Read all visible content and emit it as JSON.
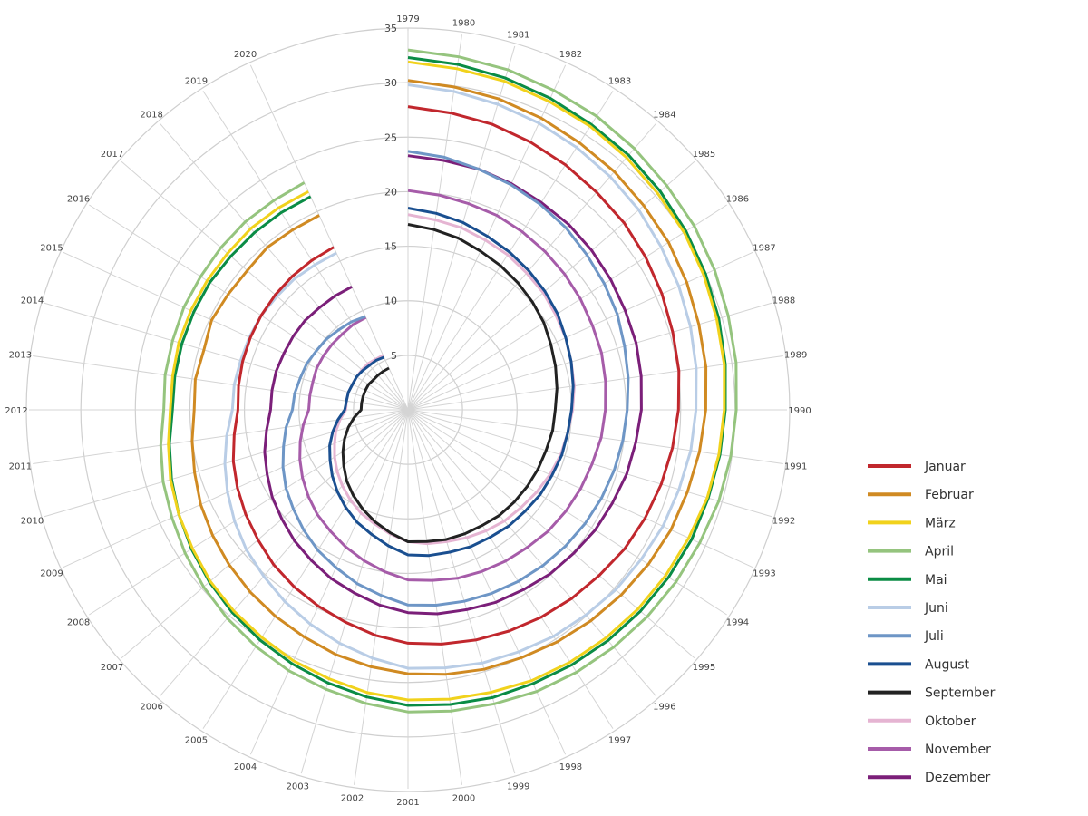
{
  "chart_data": {
    "type": "radar",
    "title": "",
    "angular_axis": "year",
    "radial_axis": {
      "ticks": [
        5,
        10,
        15,
        20,
        25,
        30,
        35
      ],
      "range": [
        0,
        35
      ]
    },
    "slots_per_revolution": 44,
    "years": [
      1979,
      1980,
      1981,
      1982,
      1983,
      1984,
      1985,
      1986,
      1987,
      1988,
      1989,
      1990,
      1991,
      1992,
      1993,
      1994,
      1995,
      1996,
      1997,
      1998,
      1999,
      2000,
      2001,
      2002,
      2003,
      2004,
      2005,
      2006,
      2007,
      2008,
      2009,
      2010,
      2011,
      2012,
      2013,
      2014,
      2015,
      2016,
      2017,
      2018,
      2019,
      2020
    ],
    "legend_position": "right",
    "grid": true,
    "series": [
      {
        "name": "Januar",
        "color": "#c1272d",
        "values": [
          27.8,
          27.5,
          27.3,
          27.0,
          26.7,
          26.4,
          26.2,
          25.9,
          25.6,
          25.3,
          25.1,
          24.8,
          24.5,
          24.2,
          23.9,
          23.6,
          23.2,
          22.9,
          22.6,
          22.3,
          22.0,
          21.7,
          21.4,
          20.9,
          20.3,
          19.8,
          19.3,
          18.8,
          18.2,
          17.7,
          17.2,
          16.7,
          16.1,
          15.6,
          15.7,
          15.8,
          15.9,
          16.0,
          16.1,
          16.2,
          16.3,
          16.4
        ]
      },
      {
        "name": "Februar",
        "color": "#d08a22",
        "values": [
          30.2,
          29.9,
          29.7,
          29.4,
          29.1,
          28.9,
          28.6,
          28.4,
          28.1,
          27.8,
          27.6,
          27.3,
          27.0,
          26.7,
          26.5,
          26.2,
          25.9,
          25.6,
          25.3,
          25.0,
          24.8,
          24.5,
          24.2,
          23.8,
          23.4,
          22.9,
          22.5,
          22.1,
          21.7,
          21.3,
          20.9,
          20.4,
          20.0,
          19.6,
          19.7,
          19.5,
          19.8,
          19.6,
          19.5,
          19.7,
          19.6,
          19.6
        ]
      },
      {
        "name": "März",
        "color": "#f1d21c",
        "values": [
          31.9,
          31.6,
          31.4,
          31.1,
          30.9,
          30.6,
          30.3,
          30.1,
          29.8,
          29.5,
          29.3,
          29.0,
          28.8,
          28.6,
          28.3,
          28.1,
          27.9,
          27.7,
          27.5,
          27.3,
          27.0,
          26.8,
          26.6,
          26.2,
          25.7,
          25.3,
          24.8,
          24.4,
          24.0,
          23.5,
          23.1,
          22.7,
          22.2,
          21.8,
          21.8,
          21.9,
          21.9,
          21.9,
          21.9,
          22.0,
          22.0,
          22.0
        ]
      },
      {
        "name": "April",
        "color": "#95c47e",
        "values": [
          33.0,
          32.7,
          32.5,
          32.2,
          32.0,
          31.7,
          31.4,
          31.2,
          30.9,
          30.6,
          30.4,
          30.1,
          29.9,
          29.7,
          29.4,
          29.2,
          29.0,
          28.8,
          28.6,
          28.4,
          28.1,
          27.9,
          27.7,
          27.2,
          26.7,
          26.3,
          25.8,
          25.3,
          24.8,
          24.3,
          23.8,
          23.4,
          22.9,
          22.4,
          22.5,
          22.5,
          22.6,
          22.6,
          22.7,
          22.8,
          22.8,
          22.9
        ]
      },
      {
        "name": "Mai",
        "color": "#0a8c45",
        "values": [
          32.3,
          32.0,
          31.7,
          31.4,
          31.1,
          30.9,
          30.6,
          30.3,
          30.0,
          29.7,
          29.4,
          29.1,
          28.9,
          28.7,
          28.6,
          28.4,
          28.2,
          28.0,
          27.8,
          27.6,
          27.5,
          27.3,
          27.1,
          26.6,
          26.1,
          25.6,
          25.1,
          24.6,
          24.1,
          23.6,
          23.1,
          22.6,
          22.1,
          21.6,
          21.6,
          21.6,
          21.6,
          21.6,
          21.5,
          21.5,
          21.5,
          21.5
        ]
      },
      {
        "name": "Juni",
        "color": "#b9cde6",
        "values": [
          29.8,
          29.5,
          29.2,
          28.9,
          28.6,
          28.3,
          28.0,
          27.6,
          27.3,
          27.0,
          26.7,
          26.4,
          26.2,
          25.9,
          25.7,
          25.4,
          25.2,
          24.9,
          24.7,
          24.4,
          24.2,
          23.9,
          23.7,
          23.0,
          22.3,
          21.6,
          20.9,
          20.2,
          19.6,
          18.9,
          18.2,
          17.5,
          16.8,
          16.1,
          16.1,
          16.0,
          16.0,
          16.0,
          15.9,
          15.9,
          15.8,
          15.8
        ]
      },
      {
        "name": "Juli",
        "color": "#6e96c6",
        "values": [
          23.7,
          23.4,
          23.0,
          22.7,
          22.4,
          22.1,
          21.7,
          21.4,
          21.1,
          20.7,
          20.4,
          20.1,
          19.9,
          19.7,
          19.5,
          19.3,
          19.1,
          18.9,
          18.7,
          18.5,
          18.3,
          18.1,
          17.9,
          17.2,
          16.6,
          15.9,
          15.3,
          14.6,
          13.9,
          13.3,
          12.6,
          11.9,
          11.3,
          10.6,
          10.5,
          10.3,
          10.2,
          10.0,
          9.9,
          9.7,
          9.6,
          9.4
        ]
      },
      {
        "name": "August",
        "color": "#1a4f90",
        "values": [
          18.5,
          18.2,
          17.9,
          17.5,
          17.2,
          16.9,
          16.6,
          16.3,
          15.9,
          15.6,
          15.3,
          15.0,
          14.8,
          14.7,
          14.5,
          14.4,
          14.2,
          14.1,
          13.9,
          13.8,
          13.6,
          13.5,
          13.3,
          12.6,
          11.9,
          11.3,
          10.6,
          9.9,
          9.2,
          8.5,
          7.9,
          7.2,
          6.5,
          5.8,
          5.7,
          5.7,
          5.6,
          5.6,
          5.5,
          5.4,
          5.4,
          5.3
        ]
      },
      {
        "name": "September",
        "color": "#222222",
        "values": [
          17.0,
          16.7,
          16.4,
          16.0,
          15.7,
          15.4,
          15.1,
          14.8,
          14.4,
          14.1,
          13.8,
          13.5,
          13.4,
          13.2,
          13.1,
          13.0,
          12.9,
          12.8,
          12.6,
          12.5,
          12.4,
          12.2,
          12.1,
          11.4,
          10.7,
          10.0,
          9.3,
          8.6,
          7.8,
          7.1,
          6.4,
          5.7,
          5.0,
          4.3,
          4.3,
          4.3,
          4.3,
          4.3,
          4.2,
          4.2,
          4.2,
          4.2
        ]
      },
      {
        "name": "Oktober",
        "color": "#e5b4d2",
        "values": [
          17.9,
          17.6,
          17.4,
          17.1,
          16.9,
          16.6,
          16.4,
          16.1,
          15.9,
          15.6,
          15.4,
          15.1,
          14.8,
          14.6,
          14.3,
          14.0,
          13.7,
          13.5,
          13.2,
          12.9,
          12.6,
          12.4,
          12.1,
          11.5,
          10.9,
          10.4,
          9.8,
          9.2,
          8.6,
          8.0,
          7.4,
          6.9,
          6.3,
          5.7,
          5.7,
          5.7,
          5.6,
          5.6,
          5.6,
          5.6,
          5.5,
          5.5
        ]
      },
      {
        "name": "November",
        "color": "#a65ca9",
        "values": [
          20.1,
          19.9,
          19.7,
          19.6,
          19.4,
          19.2,
          19.0,
          18.8,
          18.6,
          18.5,
          18.3,
          18.1,
          17.9,
          17.6,
          17.4,
          17.2,
          17.0,
          16.7,
          16.5,
          16.3,
          16.1,
          15.8,
          15.6,
          15.0,
          14.4,
          13.8,
          13.2,
          12.7,
          12.1,
          11.5,
          10.9,
          10.3,
          9.7,
          9.1,
          9.1,
          9.1,
          9.2,
          9.2,
          9.2,
          9.2,
          9.3,
          9.3
        ]
      },
      {
        "name": "Dezember",
        "color": "#7b1f79",
        "values": [
          23.3,
          23.1,
          23.0,
          22.8,
          22.6,
          22.5,
          22.3,
          22.1,
          21.9,
          21.8,
          21.6,
          21.4,
          21.1,
          20.9,
          20.6,
          20.4,
          20.1,
          19.9,
          19.6,
          19.4,
          19.1,
          18.9,
          18.6,
          18.1,
          17.5,
          17.0,
          16.4,
          15.9,
          15.3,
          14.8,
          14.2,
          13.7,
          13.1,
          12.6,
          12.6,
          12.6,
          12.5,
          12.5,
          12.5,
          12.4,
          12.4,
          12.4
        ]
      }
    ]
  }
}
